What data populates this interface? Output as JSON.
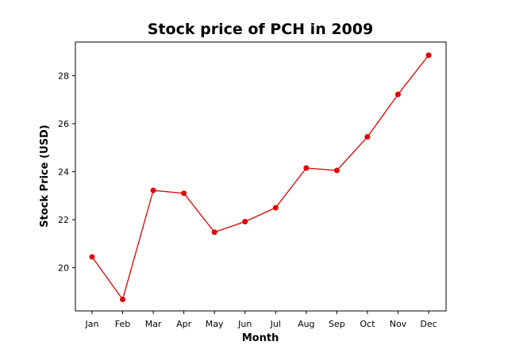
{
  "chart_data": {
    "type": "line",
    "title": "Stock price of PCH in 2009",
    "xlabel": "Month",
    "ylabel": "Stock Price (USD)",
    "categories": [
      "Jan",
      "Feb",
      "Mar",
      "Apr",
      "May",
      "Jun",
      "Jul",
      "Aug",
      "Sep",
      "Oct",
      "Nov",
      "Dec"
    ],
    "series": [
      {
        "values": [
          20.45,
          18.68,
          23.22,
          23.1,
          21.48,
          21.92,
          22.5,
          24.15,
          24.05,
          25.45,
          27.22,
          28.85
        ],
        "color": "#e00000"
      }
    ],
    "yticks": [
      20,
      22,
      24,
      26,
      28
    ],
    "ylim": [
      18.2,
      29.4
    ],
    "grid": false,
    "legend": false
  }
}
